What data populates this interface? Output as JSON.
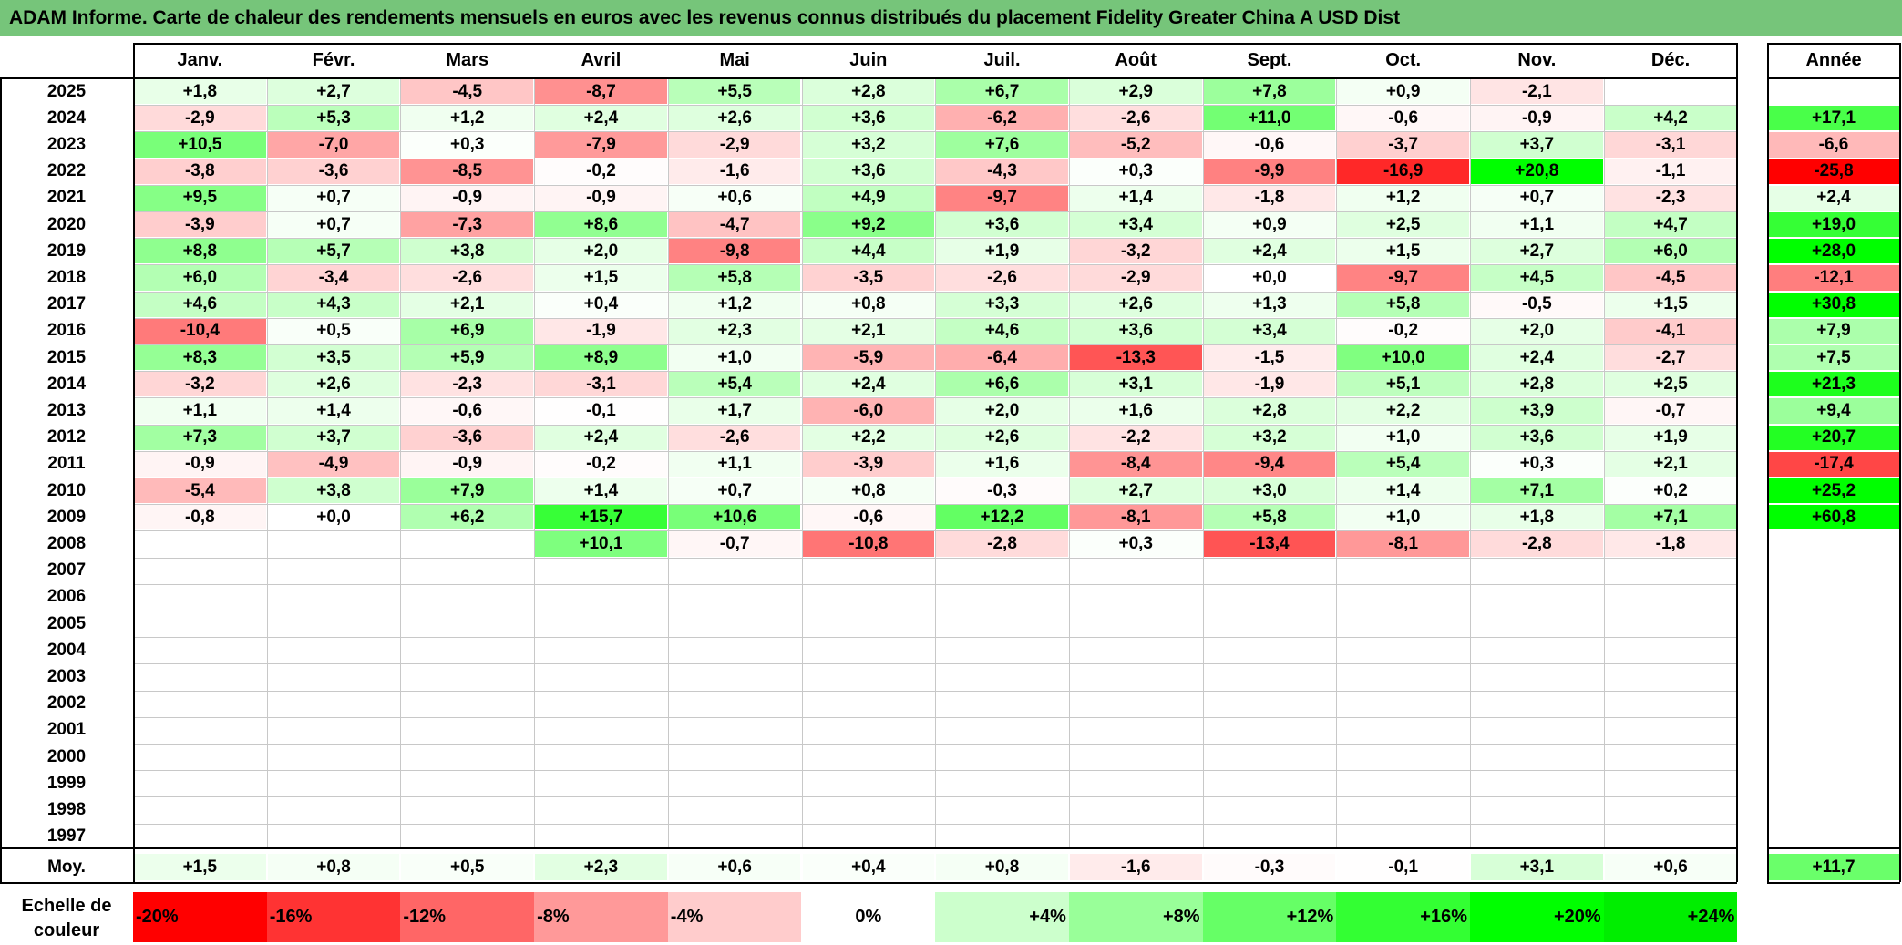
{
  "title": "ADAM Informe. Carte de chaleur des rendements mensuels en euros avec les revenus connus distribués du placement Fidelity Greater China A USD Dist",
  "chart_data": {
    "type": "heatmap",
    "title": "ADAM Informe. Carte de chaleur des rendements mensuels en euros avec les revenus connus distribués du placement Fidelity Greater China A USD Dist",
    "columns": [
      "Janv.",
      "Févr.",
      "Mars",
      "Avril",
      "Mai",
      "Juin",
      "Juil.",
      "Août",
      "Sept.",
      "Oct.",
      "Nov.",
      "Déc."
    ],
    "annual_label": "Année",
    "rows": [
      {
        "year": "2025",
        "values": [
          "+1,8",
          "+2,7",
          "-4,5",
          "-8,7",
          "+5,5",
          "+2,8",
          "+6,7",
          "+2,9",
          "+7,8",
          "+0,9",
          "-2,1",
          ""
        ],
        "annual": ""
      },
      {
        "year": "2024",
        "values": [
          "-2,9",
          "+5,3",
          "+1,2",
          "+2,4",
          "+2,6",
          "+3,6",
          "-6,2",
          "-2,6",
          "+11,0",
          "-0,6",
          "-0,9",
          "+4,2"
        ],
        "annual": "+17,1"
      },
      {
        "year": "2023",
        "values": [
          "+10,5",
          "-7,0",
          "+0,3",
          "-7,9",
          "-2,9",
          "+3,2",
          "+7,6",
          "-5,2",
          "-0,6",
          "-3,7",
          "+3,7",
          "-3,1"
        ],
        "annual": "-6,6"
      },
      {
        "year": "2022",
        "values": [
          "-3,8",
          "-3,6",
          "-8,5",
          "-0,2",
          "-1,6",
          "+3,6",
          "-4,3",
          "+0,3",
          "-9,9",
          "-16,9",
          "+20,8",
          "-1,1"
        ],
        "annual": "-25,8"
      },
      {
        "year": "2021",
        "values": [
          "+9,5",
          "+0,7",
          "-0,9",
          "-0,9",
          "+0,6",
          "+4,9",
          "-9,7",
          "+1,4",
          "-1,8",
          "+1,2",
          "+0,7",
          "-2,3"
        ],
        "annual": "+2,4"
      },
      {
        "year": "2020",
        "values": [
          "-3,9",
          "+0,7",
          "-7,3",
          "+8,6",
          "-4,7",
          "+9,2",
          "+3,6",
          "+3,4",
          "+0,9",
          "+2,5",
          "+1,1",
          "+4,7"
        ],
        "annual": "+19,0"
      },
      {
        "year": "2019",
        "values": [
          "+8,8",
          "+5,7",
          "+3,8",
          "+2,0",
          "-9,8",
          "+4,4",
          "+1,9",
          "-3,2",
          "+2,4",
          "+1,5",
          "+2,7",
          "+6,0"
        ],
        "annual": "+28,0"
      },
      {
        "year": "2018",
        "values": [
          "+6,0",
          "-3,4",
          "-2,6",
          "+1,5",
          "+5,8",
          "-3,5",
          "-2,6",
          "-2,9",
          "+0,0",
          "-9,7",
          "+4,5",
          "-4,5"
        ],
        "annual": "-12,1"
      },
      {
        "year": "2017",
        "values": [
          "+4,6",
          "+4,3",
          "+2,1",
          "+0,4",
          "+1,2",
          "+0,8",
          "+3,3",
          "+2,6",
          "+1,3",
          "+5,8",
          "-0,5",
          "+1,5"
        ],
        "annual": "+30,8"
      },
      {
        "year": "2016",
        "values": [
          "-10,4",
          "+0,5",
          "+6,9",
          "-1,9",
          "+2,3",
          "+2,1",
          "+4,6",
          "+3,6",
          "+3,4",
          "-0,2",
          "+2,0",
          "-4,1"
        ],
        "annual": "+7,9"
      },
      {
        "year": "2015",
        "values": [
          "+8,3",
          "+3,5",
          "+5,9",
          "+8,9",
          "+1,0",
          "-5,9",
          "-6,4",
          "-13,3",
          "-1,5",
          "+10,0",
          "+2,4",
          "-2,7"
        ],
        "annual": "+7,5"
      },
      {
        "year": "2014",
        "values": [
          "-3,2",
          "+2,6",
          "-2,3",
          "-3,1",
          "+5,4",
          "+2,4",
          "+6,6",
          "+3,1",
          "-1,9",
          "+5,1",
          "+2,8",
          "+2,5"
        ],
        "annual": "+21,3"
      },
      {
        "year": "2013",
        "values": [
          "+1,1",
          "+1,4",
          "-0,6",
          "-0,1",
          "+1,7",
          "-6,0",
          "+2,0",
          "+1,6",
          "+2,8",
          "+2,2",
          "+3,9",
          "-0,7"
        ],
        "annual": "+9,4"
      },
      {
        "year": "2012",
        "values": [
          "+7,3",
          "+3,7",
          "-3,6",
          "+2,4",
          "-2,6",
          "+2,2",
          "+2,6",
          "-2,2",
          "+3,2",
          "+1,0",
          "+3,6",
          "+1,9"
        ],
        "annual": "+20,7"
      },
      {
        "year": "2011",
        "values": [
          "-0,9",
          "-4,9",
          "-0,9",
          "-0,2",
          "+1,1",
          "-3,9",
          "+1,6",
          "-8,4",
          "-9,4",
          "+5,4",
          "+0,3",
          "+2,1"
        ],
        "annual": "-17,4"
      },
      {
        "year": "2010",
        "values": [
          "-5,4",
          "+3,8",
          "+7,9",
          "+1,4",
          "+0,7",
          "+0,8",
          "-0,3",
          "+2,7",
          "+3,0",
          "+1,4",
          "+7,1",
          "+0,2"
        ],
        "annual": "+25,2"
      },
      {
        "year": "2009",
        "values": [
          "-0,8",
          "+0,0",
          "+6,2",
          "+15,7",
          "+10,6",
          "-0,6",
          "+12,2",
          "-8,1",
          "+5,8",
          "+1,0",
          "+1,8",
          "+7,1"
        ],
        "annual": "+60,8"
      },
      {
        "year": "2008",
        "values": [
          "",
          "",
          "",
          "+10,1",
          "-0,7",
          "-10,8",
          "-2,8",
          "+0,3",
          "-13,4",
          "-8,1",
          "-2,8",
          "-1,8"
        ],
        "annual": ""
      },
      {
        "year": "2007",
        "values": [
          "",
          "",
          "",
          "",
          "",
          "",
          "",
          "",
          "",
          "",
          "",
          ""
        ],
        "annual": ""
      },
      {
        "year": "2006",
        "values": [
          "",
          "",
          "",
          "",
          "",
          "",
          "",
          "",
          "",
          "",
          "",
          ""
        ],
        "annual": ""
      },
      {
        "year": "2005",
        "values": [
          "",
          "",
          "",
          "",
          "",
          "",
          "",
          "",
          "",
          "",
          "",
          ""
        ],
        "annual": ""
      },
      {
        "year": "2004",
        "values": [
          "",
          "",
          "",
          "",
          "",
          "",
          "",
          "",
          "",
          "",
          "",
          ""
        ],
        "annual": ""
      },
      {
        "year": "2003",
        "values": [
          "",
          "",
          "",
          "",
          "",
          "",
          "",
          "",
          "",
          "",
          "",
          ""
        ],
        "annual": ""
      },
      {
        "year": "2002",
        "values": [
          "",
          "",
          "",
          "",
          "",
          "",
          "",
          "",
          "",
          "",
          "",
          ""
        ],
        "annual": ""
      },
      {
        "year": "2001",
        "values": [
          "",
          "",
          "",
          "",
          "",
          "",
          "",
          "",
          "",
          "",
          "",
          ""
        ],
        "annual": ""
      },
      {
        "year": "2000",
        "values": [
          "",
          "",
          "",
          "",
          "",
          "",
          "",
          "",
          "",
          "",
          "",
          ""
        ],
        "annual": ""
      },
      {
        "year": "1999",
        "values": [
          "",
          "",
          "",
          "",
          "",
          "",
          "",
          "",
          "",
          "",
          "",
          ""
        ],
        "annual": ""
      },
      {
        "year": "1998",
        "values": [
          "",
          "",
          "",
          "",
          "",
          "",
          "",
          "",
          "",
          "",
          "",
          ""
        ],
        "annual": ""
      },
      {
        "year": "1997",
        "values": [
          "",
          "",
          "",
          "",
          "",
          "",
          "",
          "",
          "",
          "",
          "",
          ""
        ],
        "annual": ""
      }
    ],
    "average": {
      "label": "Moy.",
      "values": [
        "+1,5",
        "+0,8",
        "+0,5",
        "+2,3",
        "+0,6",
        "+0,4",
        "+0,8",
        "-1,6",
        "-0,3",
        "-0,1",
        "+3,1",
        "+0,6"
      ],
      "annual": "+11,7"
    },
    "color_scale": {
      "label": "Echelle de couleur",
      "stops": [
        {
          "label": "-20%",
          "value": -20,
          "color": "#ff0000"
        },
        {
          "label": "-16%",
          "value": -16,
          "color": "#ff3333"
        },
        {
          "label": "-12%",
          "value": -12,
          "color": "#ff6666"
        },
        {
          "label": "-8%",
          "value": -8,
          "color": "#ff9999"
        },
        {
          "label": "-4%",
          "value": -4,
          "color": "#ffcccc"
        },
        {
          "label": "0%",
          "value": 0,
          "color": "#ffffff"
        },
        {
          "label": "+4%",
          "value": 4,
          "color": "#ccffcc"
        },
        {
          "label": "+8%",
          "value": 8,
          "color": "#99ff99"
        },
        {
          "label": "+12%",
          "value": 12,
          "color": "#66ff66"
        },
        {
          "label": "+16%",
          "value": 16,
          "color": "#33ff33"
        },
        {
          "label": "+20%",
          "value": 20,
          "color": "#00ff00"
        },
        {
          "label": "+24%",
          "value": 24,
          "color": "#00ee00"
        }
      ]
    }
  }
}
